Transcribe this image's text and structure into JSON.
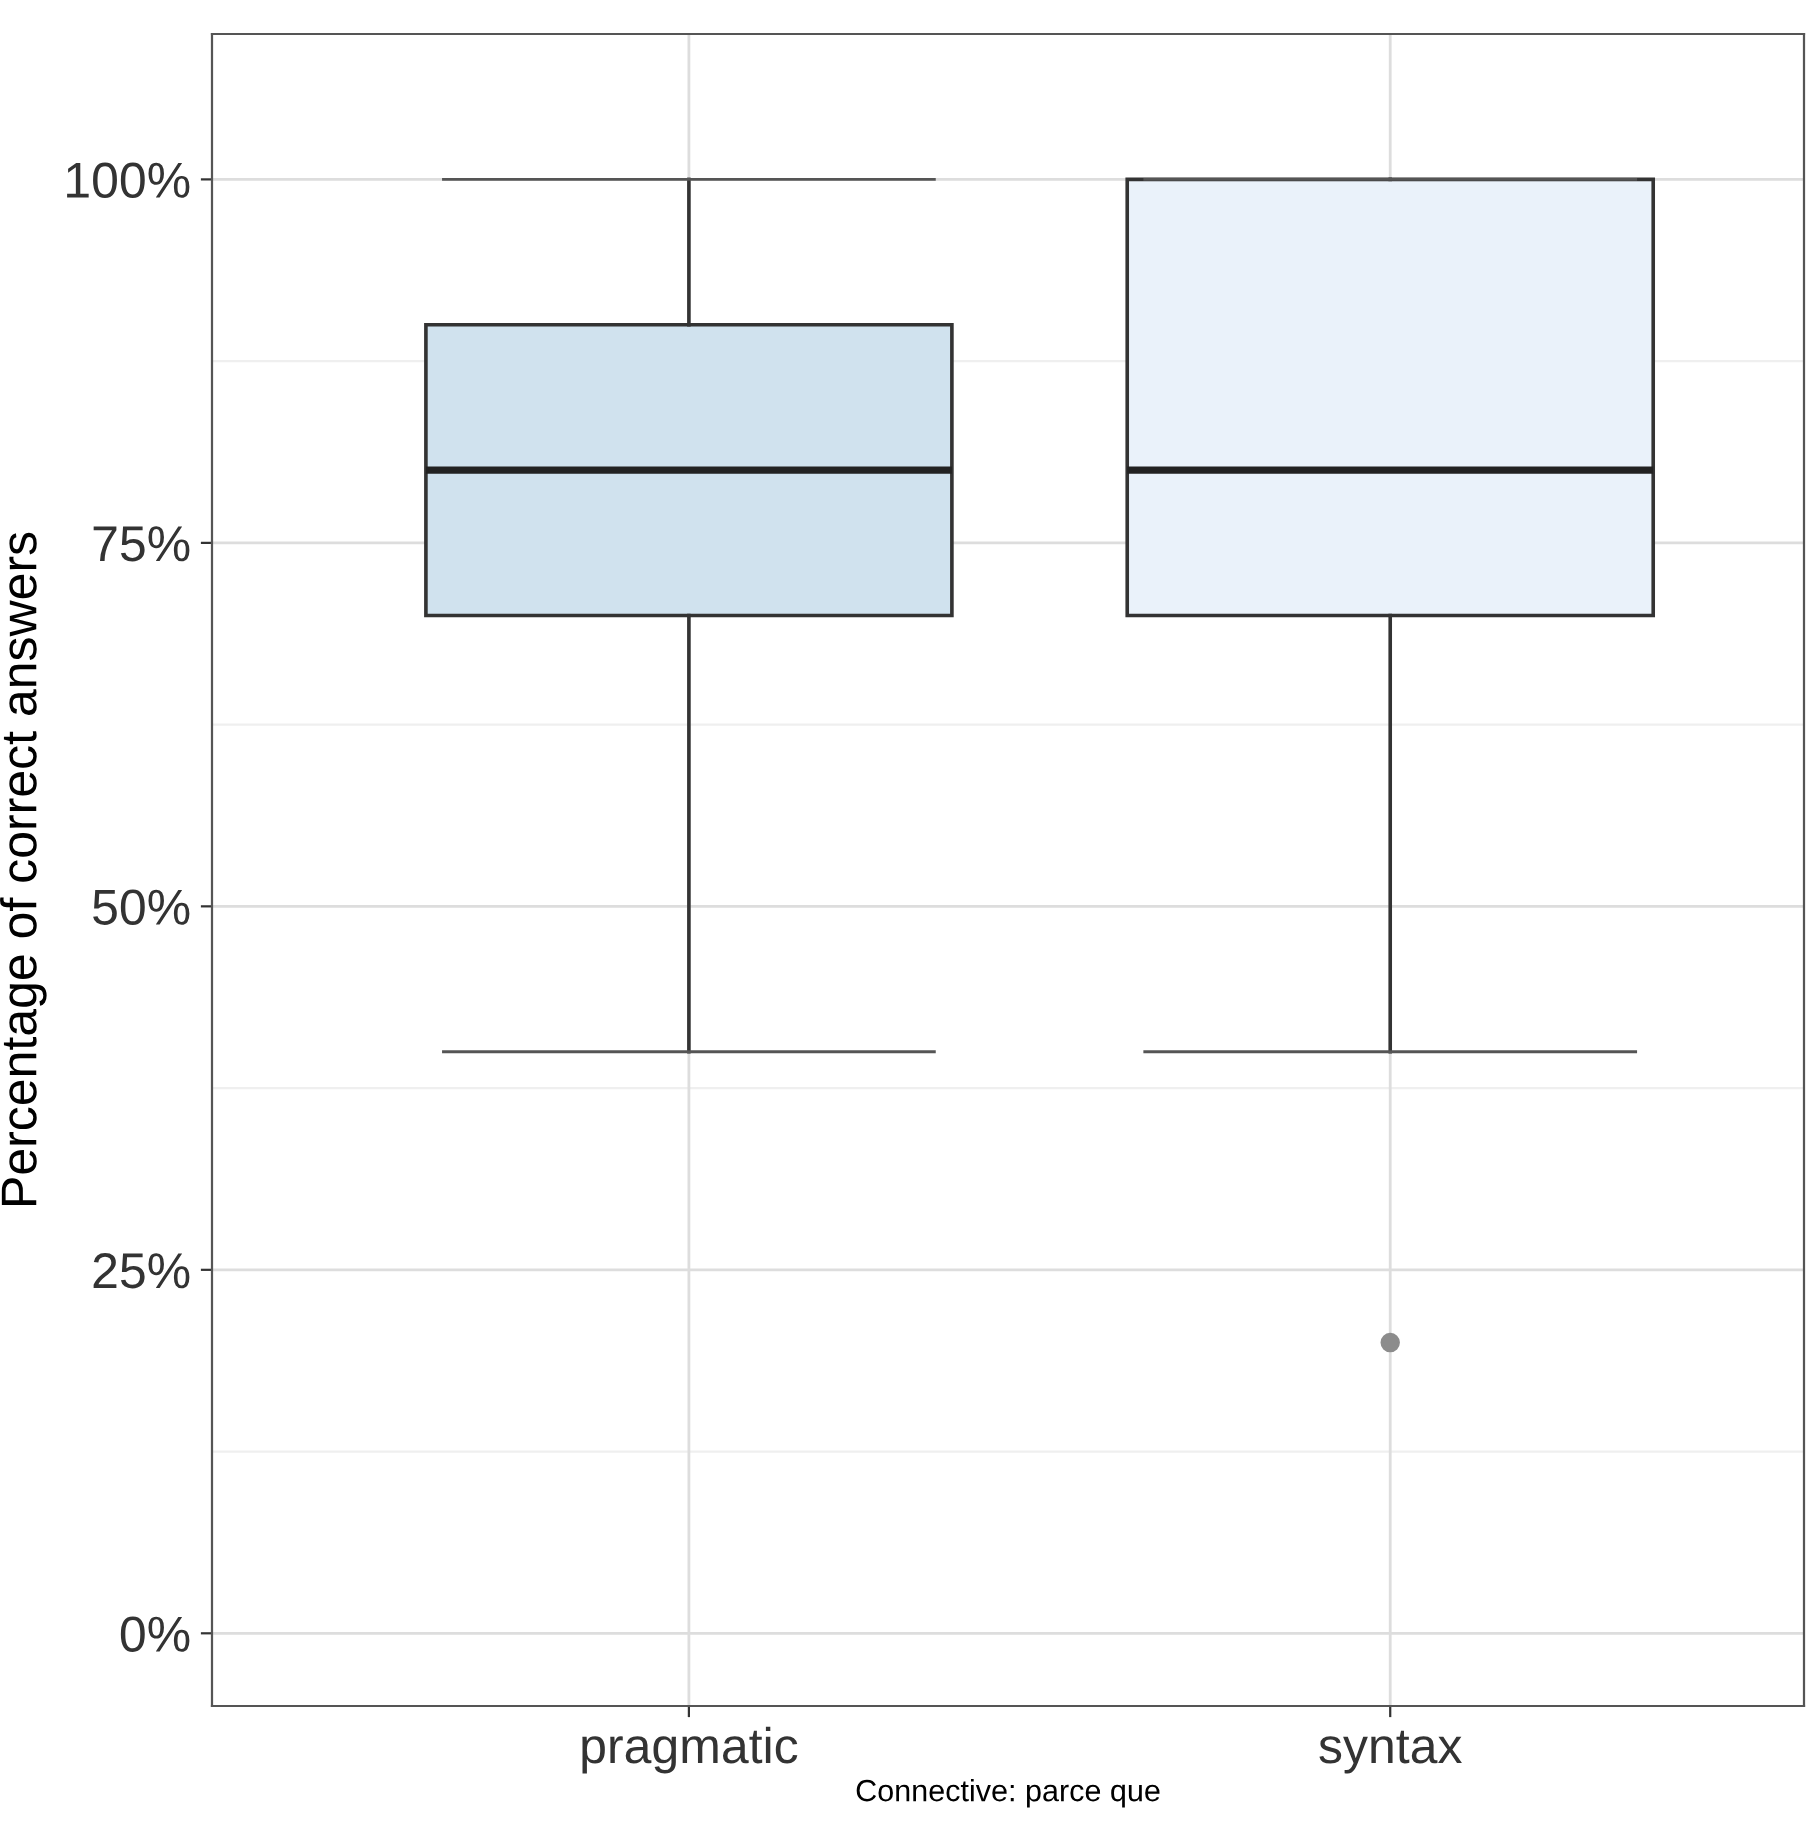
{
  "chart_data": {
    "type": "box",
    "categories": [
      "pragmatic",
      "syntax"
    ],
    "boxes": [
      {
        "low": 40,
        "q1": 70,
        "median": 80,
        "q3": 90,
        "high": 100
      },
      {
        "low": 40,
        "q1": 70,
        "median": 80,
        "q3": 100,
        "high": 100,
        "outliers": [
          20
        ]
      }
    ],
    "colors": [
      "#d0e2ee",
      "#eaf2fa"
    ],
    "ylabel": "Percentage of correct answers",
    "xlabel": "Connective: parce que",
    "ylim": [
      -5,
      110
    ],
    "yticks": [
      {
        "value": 0,
        "label": "0%"
      },
      {
        "value": 25,
        "label": "25%"
      },
      {
        "value": 50,
        "label": "50%"
      },
      {
        "value": 75,
        "label": "75%"
      },
      {
        "value": 100,
        "label": "100%"
      }
    ],
    "grid": true
  }
}
